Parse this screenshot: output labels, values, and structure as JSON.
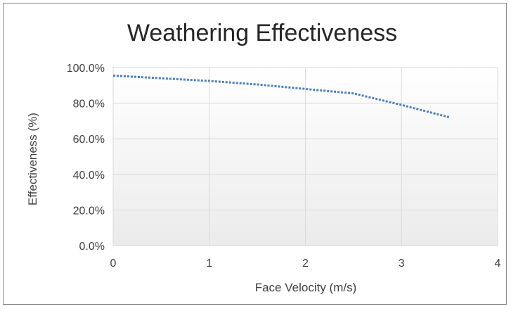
{
  "chart_data": {
    "type": "line",
    "title": "Weathering Effectiveness",
    "xlabel": "Face Velocity (m/s)",
    "ylabel": "Effectiveness (%)",
    "xlim": [
      0,
      4
    ],
    "ylim": [
      0,
      1
    ],
    "x_ticks": [
      "0",
      "1",
      "2",
      "3",
      "4"
    ],
    "y_ticks": [
      "0.0%",
      "20.0%",
      "40.0%",
      "60.0%",
      "80.0%",
      "100.0%"
    ],
    "grid": true,
    "legend": "none",
    "series": [
      {
        "line_style": "dotted",
        "color": "#4a7ebb",
        "points": [
          {
            "x": 0,
            "y": 0.955
          },
          {
            "x": 0.5,
            "y": 0.94
          },
          {
            "x": 1,
            "y": 0.925
          },
          {
            "x": 1.5,
            "y": 0.905
          },
          {
            "x": 2,
            "y": 0.88
          },
          {
            "x": 2.5,
            "y": 0.855
          },
          {
            "x": 3,
            "y": 0.79
          },
          {
            "x": 3.5,
            "y": 0.72
          }
        ]
      }
    ]
  }
}
